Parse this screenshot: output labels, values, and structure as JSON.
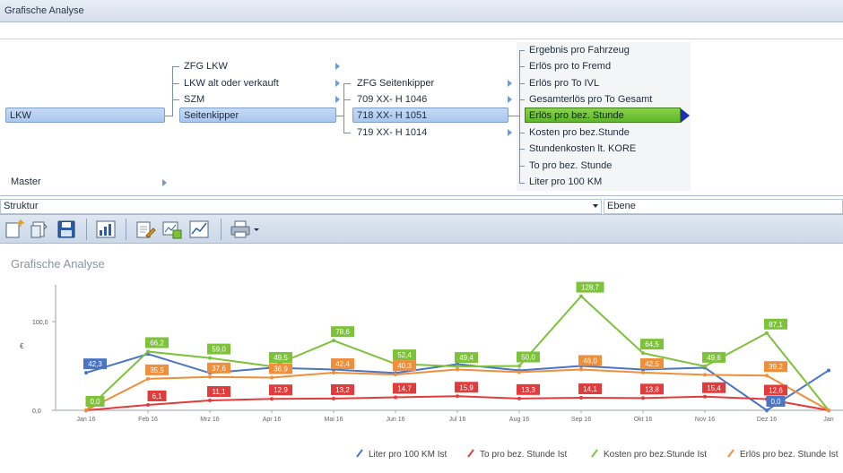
{
  "window": {
    "title": "Grafische Analyse"
  },
  "tree": {
    "level1": {
      "label": "LKW"
    },
    "master": {
      "label": "Master"
    },
    "level2": [
      {
        "label": "ZFG LKW"
      },
      {
        "label": "LKW alt oder verkauft"
      },
      {
        "label": "SZM"
      },
      {
        "label": "Seitenkipper"
      }
    ],
    "level3": [
      {
        "label": "ZFG Seitenkipper"
      },
      {
        "label": "709 XX- H 1046"
      },
      {
        "label": "718 XX- H 1051"
      },
      {
        "label": "719 XX- H 1014"
      }
    ],
    "level4": [
      {
        "label": "Ergebnis pro Fahrzeug"
      },
      {
        "label": "Erlös pro to Fremd"
      },
      {
        "label": "Erlös pro To IVL"
      },
      {
        "label": "Gesamterlös pro To Gesamt"
      },
      {
        "label": "Erlös pro bez. Stunde"
      },
      {
        "label": "Kosten pro bez.Stunde"
      },
      {
        "label": "Stundenkosten lt. KORE"
      },
      {
        "label": "To pro bez. Stunde"
      },
      {
        "label": "Liter pro 100 KM"
      }
    ]
  },
  "filters": {
    "struktur": {
      "value": "Struktur"
    },
    "ebene": {
      "value": "Ebene"
    }
  },
  "toolbar": {
    "icons": [
      "new-icon",
      "open-icon",
      "save-icon",
      "chart-icon",
      "edit-icon",
      "export-chart-icon",
      "line-chart-icon",
      "print-icon"
    ]
  },
  "chart": {
    "title": "Grafische Analyse",
    "colors": {
      "blue": "#4a74c4",
      "red": "#e03c3c",
      "green": "#7dc23a",
      "orange": "#f08f3a"
    }
  },
  "chart_data": {
    "type": "line",
    "ylabel": "€",
    "ylim": [
      0,
      150
    ],
    "yticks": [
      "0,0",
      "100,0"
    ],
    "categories": [
      "Jan 16",
      "Feb 16",
      "Mrz 16",
      "Apr 16",
      "Mai 16",
      "Jun 16",
      "Jul 16",
      "Aug 16",
      "Sep 16",
      "Okt 16",
      "Nov 16",
      "Dez 16",
      "Jan"
    ],
    "series": [
      {
        "name": "Liter pro 100 KM Ist",
        "color": "#4a74c4",
        "values": [
          42.3,
          63.5,
          42.0,
          48.0,
          46.0,
          42.0,
          52.0,
          45.0,
          50.0,
          46.0,
          48.0,
          0.0,
          45.0
        ],
        "labels": [
          "42,3",
          "",
          "",
          "",
          "",
          "",
          "",
          "",
          "",
          "",
          "",
          "0,0",
          ""
        ]
      },
      {
        "name": "To pro bez. Stunde Ist",
        "color": "#e03c3c",
        "values": [
          0.0,
          6.1,
          11.1,
          12.9,
          13.2,
          14.7,
          15.9,
          13.3,
          14.1,
          13.8,
          15.4,
          12.6,
          0.0
        ],
        "labels": [
          "",
          "6,1",
          "11,1",
          "12,9",
          "13,2",
          "14,7",
          "15,9",
          "13,3",
          "14,1",
          "13,8",
          "15,4",
          "12,6",
          ""
        ]
      },
      {
        "name": "Kosten pro bez.Stunde Ist",
        "color": "#7dc23a",
        "values": [
          0.0,
          66.2,
          59.0,
          49.5,
          78.6,
          52.4,
          49.4,
          50.0,
          128.7,
          64.5,
          49.6,
          87.1,
          0.0
        ],
        "labels": [
          "0,0",
          "66,2",
          "59,0",
          "49,5",
          "78,6",
          "52,4",
          "49,4",
          "50,0",
          "128,7",
          "64,5",
          "49,6",
          "87,1",
          ""
        ]
      },
      {
        "name": "Erlös pro bez. Stunde Ist",
        "color": "#f08f3a",
        "values": [
          0.0,
          35.5,
          37.6,
          36.9,
          42.4,
          40.3,
          46.0,
          43.0,
          46.0,
          42.5,
          40.0,
          39.2,
          0.0
        ],
        "labels": [
          "",
          "35,5",
          "37,6",
          "36,9",
          "42,4",
          "40,3",
          "",
          "",
          "46,0",
          "42,5",
          "",
          "39,2",
          ""
        ]
      }
    ],
    "legend_placement": "bottom"
  }
}
